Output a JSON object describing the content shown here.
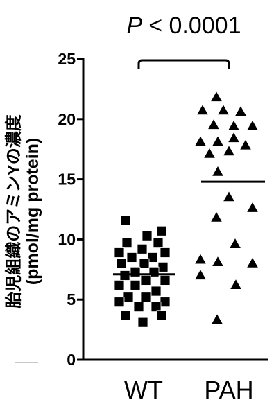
{
  "chart_data": {
    "type": "scatter",
    "annotation": {
      "symbol": "P",
      "text": "< 0.0001",
      "compares": [
        0,
        1
      ]
    },
    "ylabel": "胎児組織のアミンYの濃度",
    "yunit": "(pmol/mg protein)",
    "categories": [
      "WT",
      "PAH"
    ],
    "ylim": [
      0,
      25
    ],
    "yticks": [
      0,
      5,
      10,
      15,
      20,
      25
    ],
    "grid": false,
    "groups": [
      {
        "marker": "square",
        "color": "#000000",
        "mean": 7.1,
        "values": [
          11.6,
          10.7,
          10.3,
          9.7,
          9.7,
          9.2,
          8.9,
          8.9,
          8.5,
          8.5,
          8.0,
          8.0,
          7.7,
          7.3,
          7.3,
          7.0,
          6.6,
          6.6,
          6.2,
          6.2,
          5.7,
          5.2,
          5.2,
          4.8,
          4.8,
          4.4,
          4.4,
          3.7,
          3.7,
          3.1
        ]
      },
      {
        "marker": "triangle",
        "color": "#000000",
        "mean": 14.8,
        "values": [
          21.8,
          20.7,
          20.7,
          20.6,
          19.5,
          19.4,
          19.4,
          18.1,
          18.1,
          18.4,
          17.8,
          17.1,
          17.3,
          15.6,
          13.5,
          12.6,
          11.8,
          9.6,
          8.3,
          8.1,
          8.0,
          7.0,
          6.2,
          3.3
        ]
      }
    ]
  }
}
